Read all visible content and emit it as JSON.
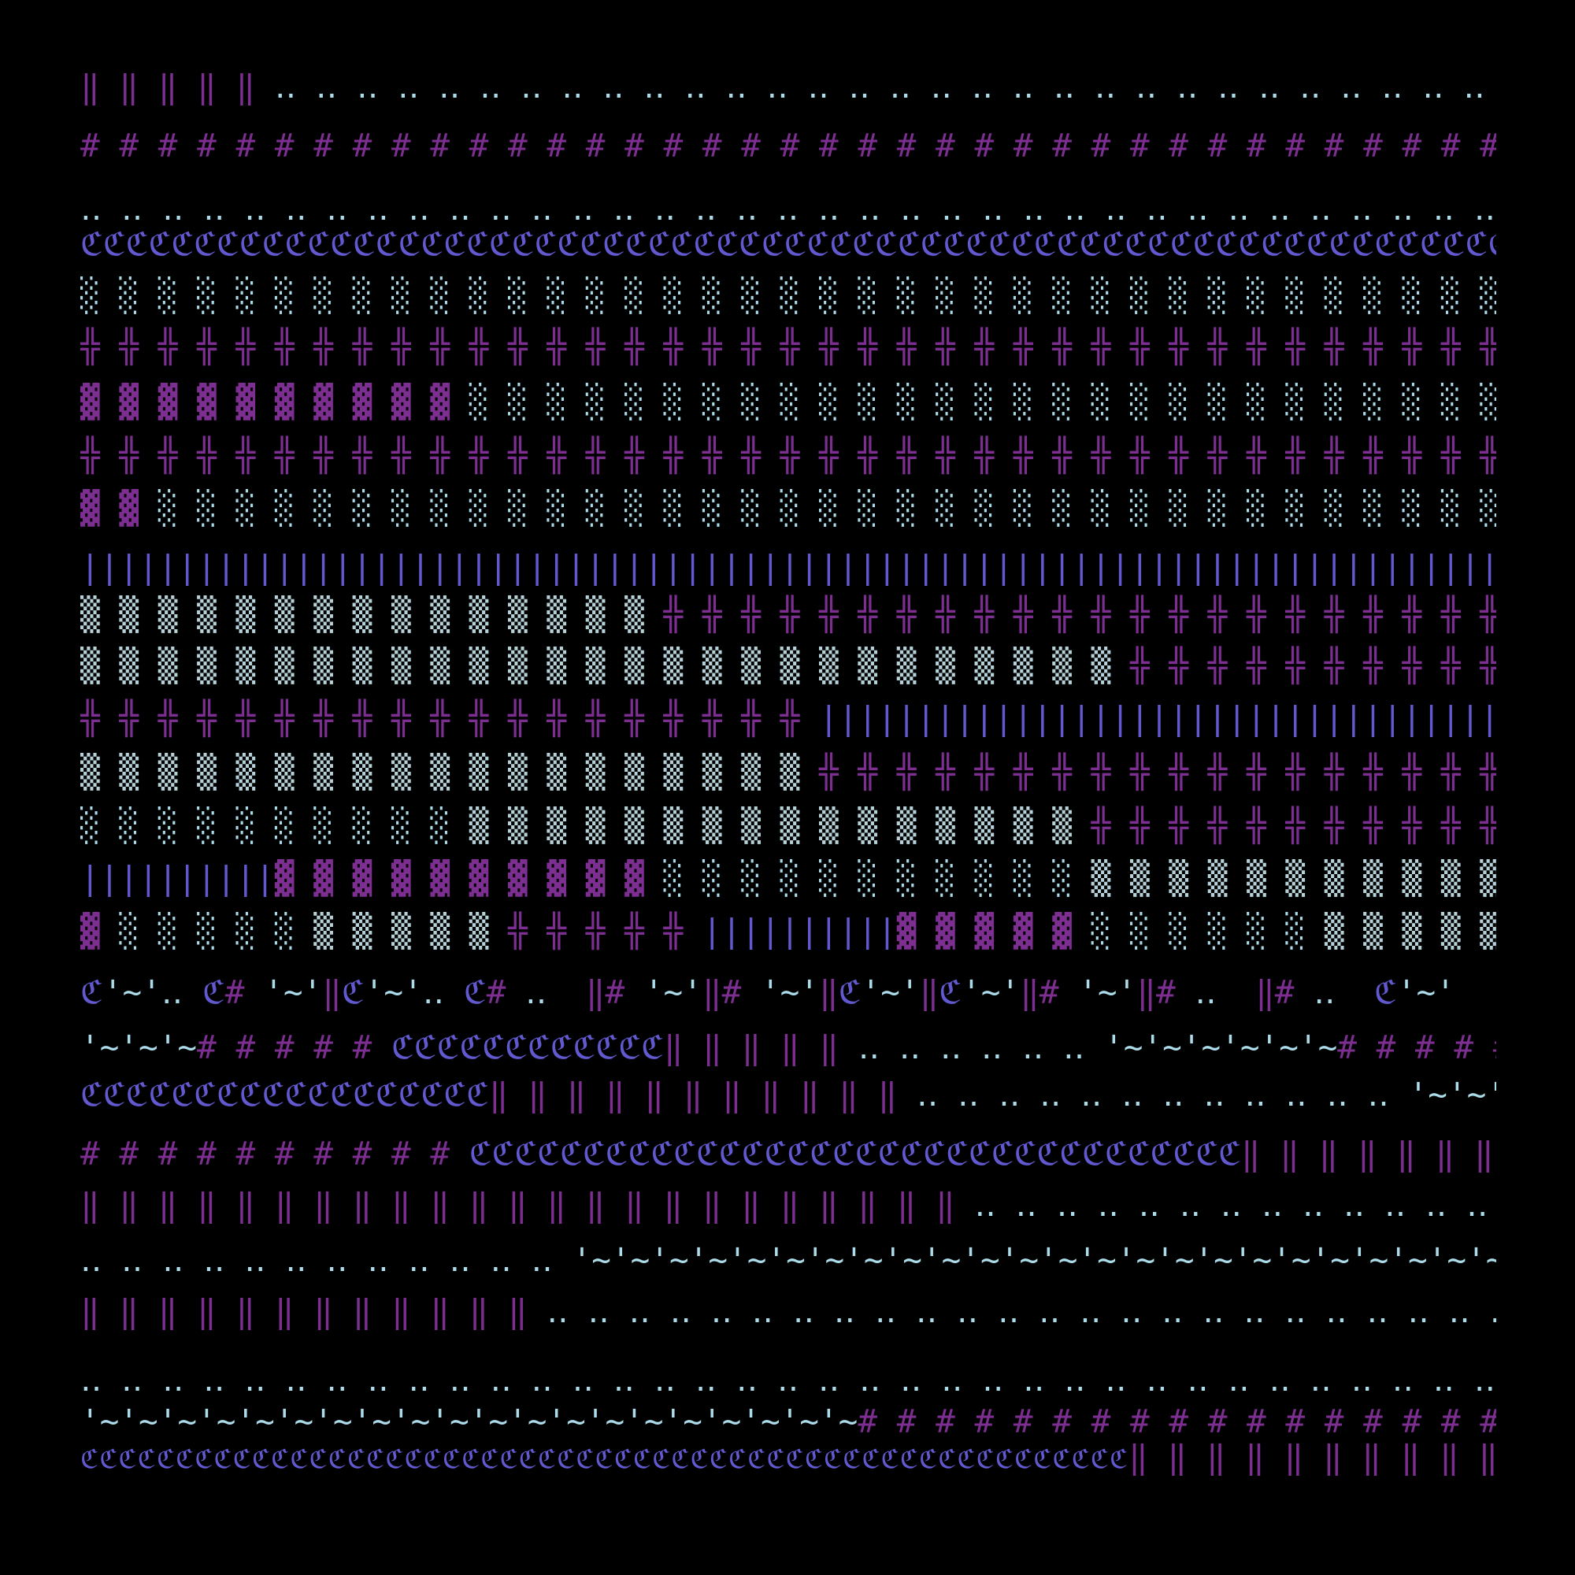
{
  "rows": [
    {
      "segments": [
        {
          "text": "‖ ‖ ‖ ‖ ‖ ",
          "color": "purple"
        },
        {
          "text": "‥ ‥ ‥ ‥ ‥ ‥ ‥ ‥ ‥ ‥ ‥ ‥ ‥ ‥ ‥ ‥ ‥ ‥ ‥ ‥ ‥ ‥ ‥ ‥ ‥ ‥ ‥ ‥ ‥ ‥ ‥ ‥ ",
          "color": "light"
        }
      ]
    },
    {
      "segments": [
        {
          "text": "# # # # # # # # # # # # # # # # # # # # # # # # # # # # # # # # # # # # # ",
          "color": "purple"
        }
      ]
    },
    {
      "segments": [
        {
          "text": "‥ ‥ ‥ ‥ ‥ ‥ ‥ ‥ ‥ ‥ ‥ ‥ ‥ ‥ ‥ ‥ ‥ ‥ ‥ ‥ ‥ ‥ ‥ ‥ ‥ ‥ ‥ ‥ ‥ ‥ ‥ ‥ ‥ ‥ ‥ ‥ ‥ ",
          "color": "light"
        }
      ]
    },
    {
      "segments": [
        {
          "text": "ℭℭℭℭℭℭℭℭℭℭℭℭℭℭℭℭℭℭℭℭℭℭℭℭℭℭℭℭℭℭℭℭℭℭℭℭℭℭℭℭℭℭℭℭℭℭℭℭℭℭℭℭℭℭℭℭℭℭℭℭℭℭℭℭℭℭℭℭℭℭℭℭℭℭ",
          "color": "blue"
        }
      ]
    },
    {
      "segments": [
        {
          "text": "░ ░ ░ ░ ░ ░ ░ ░ ░ ░ ░ ░ ░ ░ ░ ░ ░ ░ ░ ░ ░ ░ ░ ░ ░ ░ ░ ░ ░ ░ ░ ░ ░ ░ ░ ░ ░ ",
          "color": "light"
        }
      ]
    },
    {
      "segments": [
        {
          "text": "╬ ╬ ╬ ╬ ╬ ╬ ╬ ╬ ╬ ╬ ╬ ╬ ╬ ╬ ╬ ╬ ╬ ╬ ╬ ╬ ╬ ╬ ╬ ╬ ╬ ╬ ╬ ╬ ╬ ╬ ╬ ╬ ╬ ╬ ╬ ╬ ╬ ",
          "color": "purple"
        }
      ]
    },
    {
      "segments": [
        {
          "text": "▓ ▓ ▓ ▓ ▓ ▓ ▓ ▓ ▓ ▓ ",
          "color": "purple"
        },
        {
          "text": "░ ░ ░ ░ ░ ░ ░ ░ ░ ░ ░ ░ ░ ░ ░ ░ ░ ░ ░ ░ ░ ░ ░ ░ ░ ░ ░ ",
          "color": "light"
        }
      ]
    },
    {
      "segments": [
        {
          "text": "╬ ╬ ╬ ╬ ╬ ╬ ╬ ╬ ╬ ╬ ╬ ╬ ╬ ╬ ╬ ╬ ╬ ╬ ╬ ╬ ╬ ╬ ╬ ╬ ╬ ╬ ╬ ╬ ╬ ╬ ╬ ╬ ╬ ╬ ╬ ╬ ╬ ",
          "color": "purple"
        }
      ]
    },
    {
      "segments": [
        {
          "text": "▓ ▓ ",
          "color": "purple"
        },
        {
          "text": "░ ░ ░ ░ ░ ░ ░ ░ ░ ░ ░ ░ ░ ░ ░ ░ ░ ░ ░ ░ ░ ░ ░ ░ ░ ░ ░ ░ ░ ░ ░ ░ ░ ░ ░ ",
          "color": "light"
        }
      ]
    },
    {
      "segments": [
        {
          "text": "||||||||||||||||||||||||||||||||||||||||||||||||||||||||||||||||||||||||||",
          "color": "blue"
        }
      ]
    },
    {
      "segments": [
        {
          "text": "▒ ▒ ▒ ▒ ▒ ▒ ▒ ▒ ▒ ▒ ▒ ▒ ▒ ▒ ▒ ",
          "color": "gray"
        },
        {
          "text": "╬ ╬ ╬ ╬ ╬ ╬ ╬ ╬ ╬ ╬ ╬ ╬ ╬ ╬ ╬ ╬ ╬ ╬ ╬ ╬ ╬ ╬ ",
          "color": "purple"
        }
      ]
    },
    {
      "segments": [
        {
          "text": "▒ ▒ ▒ ▒ ▒ ▒ ▒ ▒ ▒ ▒ ▒ ▒ ▒ ▒ ▒ ▒ ▒ ▒ ▒ ▒ ▒ ▒ ▒ ▒ ▒ ▒ ▒ ",
          "color": "gray"
        },
        {
          "text": "╬ ╬ ╬ ╬ ╬ ╬ ╬ ╬ ╬ ╬ ",
          "color": "purple"
        }
      ]
    },
    {
      "segments": [
        {
          "text": "╬ ╬ ╬ ╬ ╬ ╬ ╬ ╬ ╬ ╬ ╬ ╬ ╬ ╬ ╬ ╬ ╬ ╬ ╬ ",
          "color": "purple"
        },
        {
          "text": "||||||||||||||||||||||||||||||||||||",
          "color": "blue"
        }
      ]
    },
    {
      "segments": [
        {
          "text": "▒ ▒ ▒ ▒ ▒ ▒ ▒ ▒ ▒ ▒ ▒ ▒ ▒ ▒ ▒ ▒ ▒ ▒ ▒ ",
          "color": "gray"
        },
        {
          "text": "╬ ╬ ╬ ╬ ╬ ╬ ╬ ╬ ╬ ╬ ╬ ╬ ╬ ╬ ╬ ╬ ╬ ╬ ",
          "color": "purple"
        }
      ]
    },
    {
      "segments": [
        {
          "text": "░ ░ ░ ░ ░ ░ ░ ░ ░ ░ ",
          "color": "light"
        },
        {
          "text": "▒ ▒ ▒ ▒ ▒ ▒ ▒ ▒ ▒ ▒ ▒ ▒ ▒ ▒ ▒ ▒ ",
          "color": "gray"
        },
        {
          "text": "╬ ╬ ╬ ╬ ╬ ╬ ╬ ╬ ╬ ╬ ╬ ",
          "color": "purple"
        }
      ]
    },
    {
      "segments": [
        {
          "text": "||||||||||",
          "color": "blue"
        },
        {
          "text": "▓ ▓ ▓ ▓ ▓ ▓ ▓ ▓ ▓ ▓ ",
          "color": "purple"
        },
        {
          "text": "░ ░ ░ ░ ░ ░ ░ ░ ░ ░ ░ ",
          "color": "light"
        },
        {
          "text": "▒ ▒ ▒ ▒ ▒ ▒ ▒ ▒ ▒ ▒ ▒ ",
          "color": "gray"
        }
      ]
    },
    {
      "segments": [
        {
          "text": "▓ ",
          "color": "purple"
        },
        {
          "text": "░ ░ ░ ░ ░ ",
          "color": "light"
        },
        {
          "text": "▒ ▒ ▒ ▒ ▒ ",
          "color": "gray"
        },
        {
          "text": "╬ ╬ ╬ ╬ ╬ ",
          "color": "purple"
        },
        {
          "text": "||||||||||",
          "color": "blue"
        },
        {
          "text": "▓ ▓ ▓ ▓ ▓ ",
          "color": "purple"
        },
        {
          "text": "░ ░ ░ ░ ░ ░ ",
          "color": "light"
        },
        {
          "text": "▒ ▒ ▒ ▒ ▒ ",
          "color": "gray"
        }
      ]
    },
    {
      "segments": [
        {
          "text": "ℭ",
          "color": "blue"
        },
        {
          "text": "'~'‥ ",
          "color": "light"
        },
        {
          "text": "ℭ",
          "color": "blue"
        },
        {
          "text": "# ",
          "color": "purple"
        },
        {
          "text": "'~'",
          "color": "light"
        },
        {
          "text": "‖",
          "color": "purple"
        },
        {
          "text": "ℭ",
          "color": "blue"
        },
        {
          "text": "'~'‥ ",
          "color": "light"
        },
        {
          "text": "ℭ",
          "color": "blue"
        },
        {
          "text": "# ",
          "color": "purple"
        },
        {
          "text": "‥  ",
          "color": "light"
        },
        {
          "text": "‖# ",
          "color": "purple"
        },
        {
          "text": "'~'",
          "color": "light"
        },
        {
          "text": "‖# ",
          "color": "purple"
        },
        {
          "text": "'~'",
          "color": "light"
        },
        {
          "text": "‖",
          "color": "purple"
        },
        {
          "text": "ℭ",
          "color": "blue"
        },
        {
          "text": "'~'",
          "color": "light"
        },
        {
          "text": "‖",
          "color": "purple"
        },
        {
          "text": "ℭ",
          "color": "blue"
        },
        {
          "text": "'~'",
          "color": "light"
        },
        {
          "text": "‖# ",
          "color": "purple"
        },
        {
          "text": "'~'",
          "color": "light"
        },
        {
          "text": "‖# ",
          "color": "purple"
        },
        {
          "text": "‥  ",
          "color": "light"
        },
        {
          "text": "‖# ",
          "color": "purple"
        },
        {
          "text": "‥  ",
          "color": "light"
        },
        {
          "text": "ℭ",
          "color": "blue"
        },
        {
          "text": "'~'",
          "color": "light"
        }
      ]
    },
    {
      "segments": [
        {
          "text": "'~'~'~",
          "color": "light"
        },
        {
          "text": "# # # # # ",
          "color": "purple"
        },
        {
          "text": "ℭℭℭℭℭℭℭℭℭℭℭℭ",
          "color": "blue"
        },
        {
          "text": "‖ ‖ ‖ ‖ ‖ ",
          "color": "purple"
        },
        {
          "text": "‥ ‥ ‥ ‥ ‥ ‥ ",
          "color": "light"
        },
        {
          "text": "'~'~'~'~'~'~",
          "color": "light"
        },
        {
          "text": "# # # # # ",
          "color": "purple"
        }
      ]
    },
    {
      "segments": [
        {
          "text": "ℭℭℭℭℭℭℭℭℭℭℭℭℭℭℭℭℭℭ",
          "color": "blue"
        },
        {
          "text": "‖ ‖ ‖ ‖ ‖ ‖ ‖ ‖ ‖ ‖ ‖ ",
          "color": "purple"
        },
        {
          "text": "‥ ‥ ‥ ‥ ‥ ‥ ‥ ‥ ‥ ‥ ‥ ‥ ",
          "color": "light"
        },
        {
          "text": "'~'~'~'~'~",
          "color": "light"
        }
      ]
    },
    {
      "segments": [
        {
          "text": "# # # # # # # # # # ",
          "color": "purple"
        },
        {
          "text": "ℭℭℭℭℭℭℭℭℭℭℭℭℭℭℭℭℭℭℭℭℭℭℭℭℭℭℭℭℭℭℭℭℭℭ",
          "color": "blue"
        },
        {
          "text": "‖ ‖ ‖ ‖ ‖ ‖ ‖ ‖ ‖ ",
          "color": "purple"
        }
      ]
    },
    {
      "segments": [
        {
          "text": "‖ ‖ ‖ ‖ ‖ ‖ ‖ ‖ ‖ ‖ ‖ ‖ ‖ ‖ ‖ ‖ ‖ ‖ ‖ ‖ ‖ ‖ ‖ ",
          "color": "purple"
        },
        {
          "text": "‥ ‥ ‥ ‥ ‥ ‥ ‥ ‥ ‥ ‥ ‥ ‥ ‥ ‥ ",
          "color": "light"
        }
      ]
    },
    {
      "segments": [
        {
          "text": "‥ ‥ ‥ ‥ ‥ ‥ ‥ ‥ ‥ ‥ ‥ ‥ ",
          "color": "light"
        },
        {
          "text": "'~'~'~'~'~'~'~'~'~'~'~'~'~'~'~'~'~'~'~'~'~'~'~'~'~",
          "color": "light"
        }
      ]
    },
    {
      "segments": [
        {
          "text": "‖ ‖ ‖ ‖ ‖ ‖ ‖ ‖ ‖ ‖ ‖ ‖ ",
          "color": "purple"
        },
        {
          "text": "‥ ‥ ‥ ‥ ‥ ‥ ‥ ‥ ‥ ‥ ‥ ‥ ‥ ‥ ‥ ‥ ‥ ‥ ‥ ‥ ‥ ‥ ‥ ‥ ‥ ",
          "color": "light"
        }
      ]
    },
    {
      "segments": [
        {
          "text": "‥ ‥ ‥ ‥ ‥ ‥ ‥ ‥ ‥ ‥ ‥ ‥ ‥ ‥ ‥ ‥ ‥ ‥ ‥ ‥ ‥ ‥ ‥ ‥ ‥ ‥ ‥ ‥ ‥ ‥ ‥ ‥ ‥ ‥ ‥ ‥ ‥ ",
          "color": "light"
        }
      ]
    },
    {
      "segments": [
        {
          "text": "'~'~'~'~'~'~'~'~'~'~'~'~'~'~'~'~'~'~'~'~",
          "color": "light"
        },
        {
          "text": "# # # # # # # # # # # # # # # # # ",
          "color": "purple"
        }
      ]
    },
    {
      "segments": [
        {
          "text": "ℭℭℭℭℭℭℭℭℭℭℭℭℭℭℭℭℭℭℭℭℭℭℭℭℭℭℭℭℭℭℭℭℭℭℭℭℭℭℭℭℭℭℭℭℭℭℭℭℭℭℭℭℭℭℭ",
          "color": "blue",
          "small": true
        },
        {
          "text": "‖ ‖ ‖ ‖ ‖ ‖ ‖ ‖ ‖ ‖ ",
          "color": "purple"
        }
      ]
    }
  ]
}
